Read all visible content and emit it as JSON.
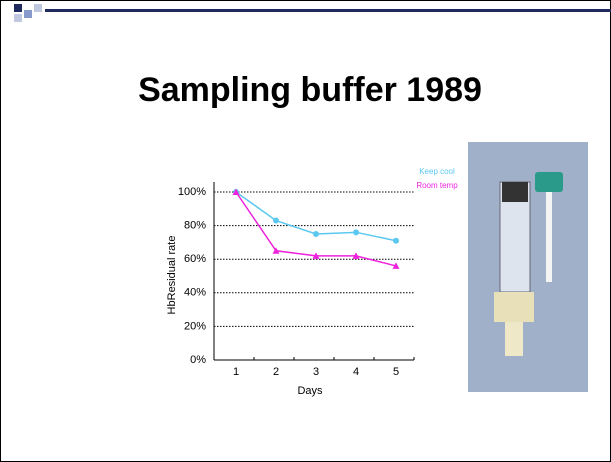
{
  "chart_data": {
    "type": "line",
    "title": "Sampling buffer 1989",
    "x_label": "Days",
    "y_label": "HbResidual rate",
    "categories": [
      "1",
      "2",
      "3",
      "4",
      "5"
    ],
    "series": [
      {
        "name": "Keep cool",
        "color": "#5bc8f0",
        "values": [
          100,
          83,
          75,
          76,
          71
        ]
      },
      {
        "name": "Room temp",
        "color": "#ee22dd",
        "values": [
          100,
          65,
          62,
          62,
          56
        ]
      }
    ],
    "ylim": [
      0,
      100
    ],
    "yticks": [
      {
        "value": 0,
        "label": "0%"
      },
      {
        "value": 20,
        "label": "20%"
      },
      {
        "value": 40,
        "label": "40%"
      },
      {
        "value": 60,
        "label": "60%"
      },
      {
        "value": 80,
        "label": "80%"
      },
      {
        "value": 100,
        "label": "100%"
      }
    ],
    "grid": true
  }
}
